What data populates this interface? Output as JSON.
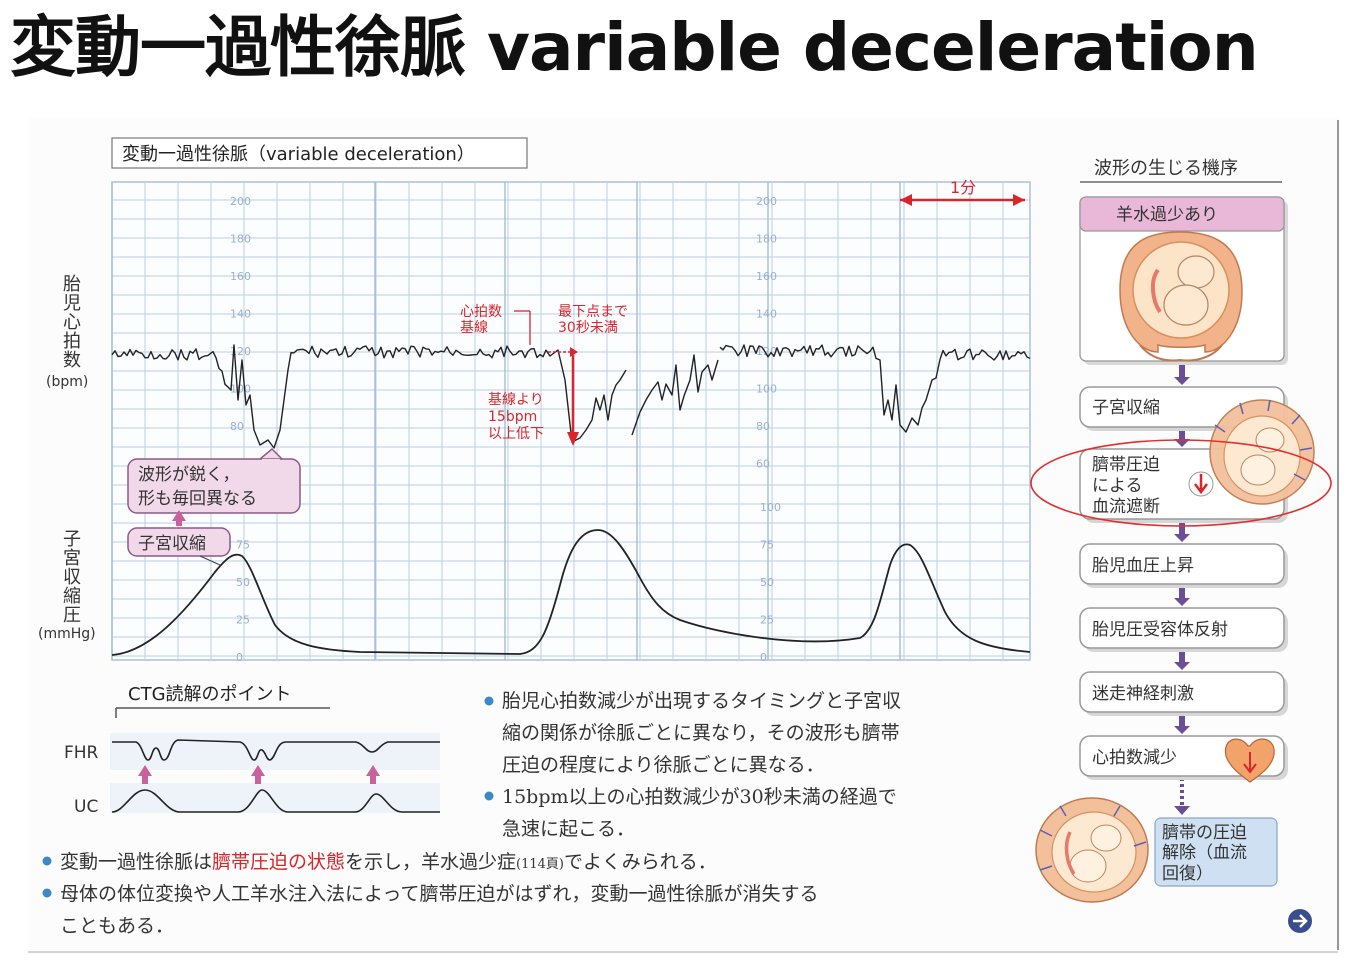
{
  "slide_title": "変動一過性徐脈 variable deceleration",
  "figure": {
    "box_title": "変動一過性徐脈（variable deceleration）",
    "one_minute_label": "1分",
    "fhr_axis_label_lines": [
      "胎",
      "児",
      "心",
      "拍",
      "数"
    ],
    "fhr_unit": "(bpm)",
    "uc_axis_label_lines": [
      "子",
      "宮",
      "収",
      "縮",
      "圧"
    ],
    "uc_unit": "(mmHg)",
    "fhr_ticks": [
      "200",
      "180",
      "160",
      "140",
      "120",
      "100",
      "80",
      "60"
    ],
    "uc_ticks": [
      "100",
      "75",
      "50",
      "25",
      "0"
    ],
    "annotations": {
      "baseline_1": "心拍数",
      "baseline_2": "基線",
      "to_nadir_1": "最下点まで",
      "to_nadir_2": "30秒未満",
      "drop_1": "基線より",
      "drop_2": "15bpm",
      "drop_3": "以上低下",
      "waveform_1": "波形が鋭く，",
      "waveform_2": "形も毎回異なる",
      "contraction": "子宮収縮"
    },
    "ctg_points_title": "CTG読解のポイント",
    "mini_fhr_label": "FHR",
    "mini_uc_label": "UC",
    "bullets_right": [
      [
        "胎児心拍数減少が出現するタイミングと子宮収",
        "縮の関係が徐脈ごとに異なり，その波形も臍帯",
        "圧迫の程度により徐脈ごとに異なる．"
      ],
      [
        "15bpm以上の心拍数減少が30秒未満の経過で",
        "急速に起こる．"
      ]
    ],
    "bullets_bottom": [
      {
        "pre": "変動一過性徐脈は",
        "highlight": "臍帯圧迫の状態",
        "post": "を示し，羊水過少症",
        "ref": "(114頁)",
        "end": "でよくみられる．"
      },
      {
        "lines": [
          "母体の体位変換や人工羊水注入法によって臍帯圧迫がはずれ，変動一過性徐脈が消失する",
          "こともある．"
        ]
      }
    ],
    "mechanism_title": "波形の生じる機序",
    "mechanism_steps": [
      [
        "羊水過少あり"
      ],
      [
        "子宮収縮"
      ],
      [
        "臍帯圧迫",
        "による",
        "血流遮断"
      ],
      [
        "胎児血圧上昇"
      ],
      [
        "胎児圧受容体反射"
      ],
      [
        "迷走神経刺激"
      ],
      [
        "心拍数減少"
      ],
      [
        "臍帯の圧迫",
        "解除（血流",
        "回復）"
      ]
    ],
    "colors": {
      "accent_red": "#d8262b",
      "pink_box": "#f2d9ea",
      "pink_border": "#8a5a88",
      "purple_arrow": "#6a4f96",
      "pink_arrow": "#c8619c",
      "circle_red": "#e03030"
    }
  }
}
